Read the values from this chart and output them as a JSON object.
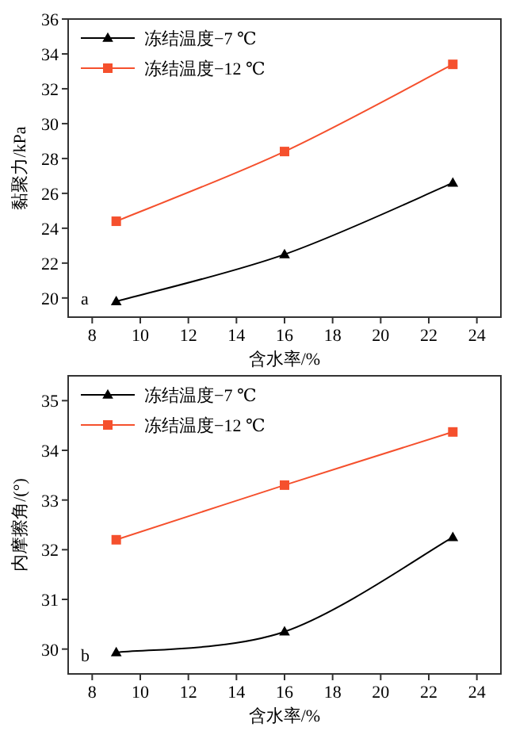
{
  "chart_data": [
    {
      "type": "line",
      "xlabel": "含水率/%",
      "ylabel": "黏聚力/kPa",
      "x": [
        9,
        16,
        23
      ],
      "xlim": [
        7,
        25
      ],
      "xticks": [
        8,
        10,
        12,
        14,
        16,
        18,
        20,
        22,
        24
      ],
      "ylim": [
        18.9,
        36
      ],
      "yticks": [
        20,
        22,
        24,
        26,
        28,
        30,
        32,
        34,
        36
      ],
      "legend": "top left",
      "line_style": "solid",
      "annotations": [
        "a"
      ],
      "series": [
        {
          "name": "冻结温度−7 ℃",
          "color": "#000000",
          "marker": "triangle",
          "values": [
            19.8,
            22.5,
            26.6
          ]
        },
        {
          "name": "冻结温度−12 ℃",
          "color": "#f5502d",
          "marker": "square",
          "values": [
            24.4,
            28.4,
            33.4
          ]
        }
      ]
    },
    {
      "type": "line",
      "xlabel": "含水率/%",
      "ylabel": "内摩擦角/(°)",
      "x": [
        9,
        16,
        23
      ],
      "xlim": [
        7,
        25
      ],
      "xticks": [
        8,
        10,
        12,
        14,
        16,
        18,
        20,
        22,
        24
      ],
      "ylim": [
        29.5,
        35.5
      ],
      "yticks": [
        30,
        31,
        32,
        33,
        34,
        35
      ],
      "legend": "top left",
      "line_style": "solid",
      "annotations": [
        "b"
      ],
      "series": [
        {
          "name": "冻结温度−7 ℃",
          "color": "#000000",
          "marker": "triangle",
          "values": [
            29.93,
            30.35,
            32.25
          ]
        },
        {
          "name": "冻结温度−12 ℃",
          "color": "#f5502d",
          "marker": "square",
          "values": [
            32.2,
            33.3,
            34.37
          ]
        }
      ]
    }
  ]
}
